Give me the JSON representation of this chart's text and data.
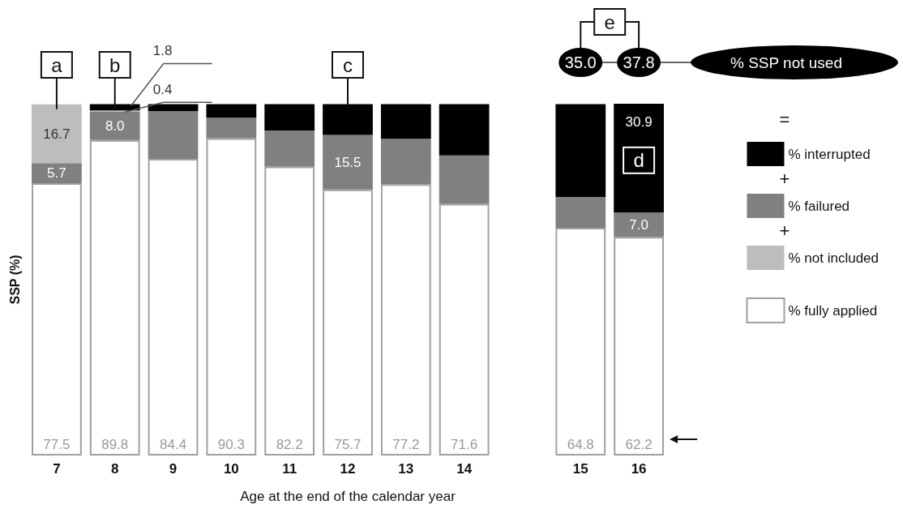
{
  "chart_data": {
    "type": "bar",
    "stacked": true,
    "xlabel": "Age at the end of the calendar year",
    "ylabel": "SSP (%)",
    "categories": [
      "7",
      "8",
      "9",
      "10",
      "11",
      "12",
      "13",
      "14",
      null,
      "15",
      "16"
    ],
    "series": [
      {
        "name": "% fully applied",
        "color": "#ffffff",
        "values": [
          77.5,
          89.8,
          84.4,
          90.3,
          82.2,
          75.7,
          77.2,
          71.6,
          null,
          64.8,
          62.2
        ],
        "value_labels": [
          "77.5",
          "89.8",
          "84.4",
          "90.3",
          "82.2",
          "75.7",
          "77.2",
          "71.6",
          null,
          "64.8",
          "62.2"
        ]
      },
      {
        "name": "% failured",
        "color": "#808080",
        "values": [
          5.7,
          8.0,
          13.6,
          5.8,
          10.3,
          15.5,
          12.9,
          13.8,
          null,
          8.8,
          7.0
        ],
        "value_labels": [
          "5.7",
          "8.0",
          null,
          null,
          null,
          "15.5",
          null,
          null,
          null,
          null,
          "7.0"
        ]
      },
      {
        "name": "% not included",
        "color": "#bdbdbd",
        "values": [
          16.7,
          0.4,
          null,
          null,
          null,
          null,
          null,
          null,
          null,
          null,
          null
        ],
        "value_labels": [
          "16.7",
          "0.4",
          null,
          null,
          null,
          null,
          null,
          null,
          null,
          null,
          null
        ]
      },
      {
        "name": "% interrupted",
        "color": "#000000",
        "values": [
          null,
          1.8,
          2.0,
          3.9,
          7.5,
          8.8,
          9.9,
          14.6,
          null,
          26.4,
          30.9
        ],
        "value_labels": [
          null,
          "1.8",
          null,
          null,
          null,
          null,
          null,
          null,
          null,
          null,
          "30.9"
        ]
      }
    ],
    "legend": "right",
    "annotations": [
      {
        "text": "a",
        "x": "7"
      },
      {
        "text": "b",
        "x": "8"
      },
      {
        "text": "c",
        "x": "12"
      },
      {
        "text": "d",
        "x": "16",
        "y": 84
      },
      "e",
      "35.0",
      "37.8",
      "% SSP not used",
      "=",
      "+",
      "+"
    ]
  }
}
